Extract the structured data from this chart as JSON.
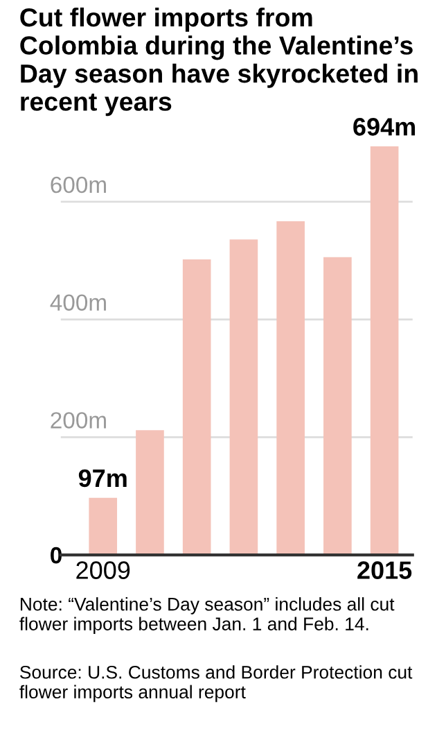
{
  "chart_data": {
    "type": "bar",
    "title": "Cut flower imports from Colombia during the Valentine’s Day season have skyrocketed in recent years",
    "categories": [
      "2009",
      null,
      null,
      null,
      null,
      null,
      "2015"
    ],
    "values": [
      97,
      212,
      502,
      536,
      567,
      506,
      694
    ],
    "value_labels": [
      "97m",
      null,
      null,
      null,
      null,
      null,
      "694m"
    ],
    "color": "#f4c2b8",
    "ylim": [
      0,
      700
    ],
    "yticks": [
      {
        "value": 0,
        "label": "0"
      },
      {
        "value": 200,
        "label": "200m"
      },
      {
        "value": 400,
        "label": "400m"
      },
      {
        "value": 600,
        "label": "600m"
      }
    ],
    "grid": "y",
    "annotations": [
      "Note: “Valentine’s Day season” includes all cut flower imports between Jan. 1 and Feb. 14.",
      "Source: U.S. Customs and Border Protection cut flower imports annual report"
    ]
  }
}
